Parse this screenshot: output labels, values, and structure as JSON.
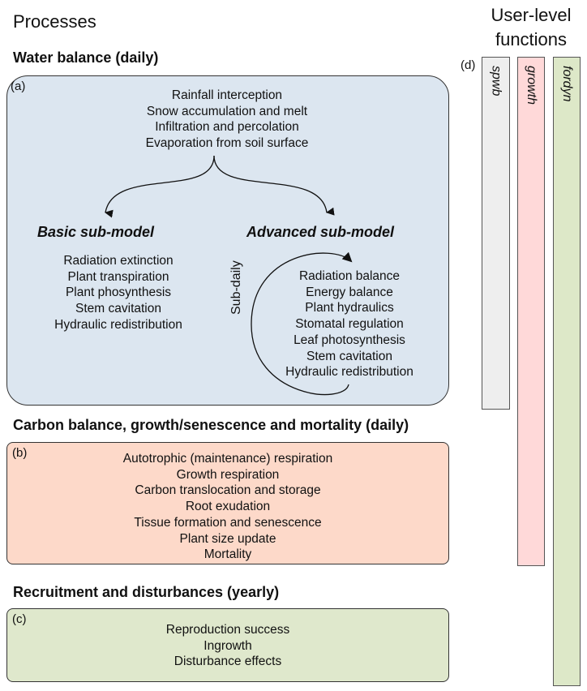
{
  "title": "Processes",
  "water": {
    "heading": "Water balance (daily)",
    "label": "(a)",
    "processes": [
      "Rainfall interception",
      "Snow accumulation and melt",
      "Infiltration and percolation",
      "Evaporation from soil surface"
    ],
    "basic": {
      "title": "Basic sub-model",
      "items": [
        "Radiation extinction",
        "Plant transpiration",
        "Plant phosynthesis",
        "Stem cavitation",
        "Hydraulic redistribution"
      ]
    },
    "advanced": {
      "title": "Advanced sub-model",
      "loop_label": "Sub-daily",
      "items": [
        "Radiation balance",
        "Energy balance",
        "Plant hydraulics",
        "Stomatal regulation",
        "Leaf photosynthesis",
        "Stem cavitation",
        "Hydraulic redistribution"
      ]
    },
    "color": "#dce6f0"
  },
  "carbon": {
    "heading": "Carbon balance, growth/senescence and mortality (daily)",
    "label": "(b)",
    "items": [
      "Autotrophic (maintenance) respiration",
      "Growth respiration",
      "Carbon translocation and storage",
      "Root exudation",
      "Tissue formation and senescence",
      "Plant size update",
      "Mortality"
    ],
    "color": "#fdd9c9"
  },
  "recruitment": {
    "heading": "Recruitment and disturbances (yearly)",
    "label": "(c)",
    "items": [
      "Reproduction success",
      "Ingrowth",
      "Disturbance effects"
    ],
    "color": "#dfe8cc"
  },
  "functions": {
    "title_line1": "User-level",
    "title_line2": "functions",
    "label": "(d)",
    "items": [
      {
        "name": "spwb",
        "color": "#eeeeee"
      },
      {
        "name": "growth",
        "color": "#ffd9d9"
      },
      {
        "name": "fordyn",
        "color": "#dde8c8"
      }
    ]
  }
}
